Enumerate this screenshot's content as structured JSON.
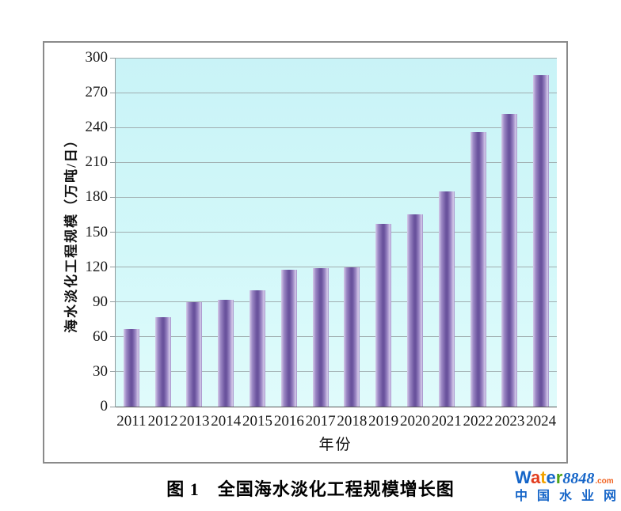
{
  "chart_data": {
    "type": "bar",
    "title": "",
    "xlabel": "年份",
    "ylabel": "海水淡化工程规模（万吨/日）",
    "categories": [
      "2011",
      "2012",
      "2013",
      "2014",
      "2015",
      "2016",
      "2017",
      "2018",
      "2019",
      "2020",
      "2021",
      "2022",
      "2023",
      "2024"
    ],
    "values": [
      67,
      77,
      90,
      92,
      100,
      118,
      119,
      120,
      157,
      165,
      185,
      236,
      252,
      285
    ],
    "ylim": [
      0,
      300
    ],
    "yticks": [
      0,
      30,
      60,
      90,
      120,
      150,
      180,
      210,
      240,
      270,
      300
    ],
    "grid": true,
    "legend": "none",
    "plot_bg_color": "#cdf6f8",
    "gridline_color": "#a0aeb0",
    "bar_color_light": "#d5cbea",
    "bar_color_mid": "#9b87c4",
    "bar_color_dark": "#6a539d"
  },
  "caption": "图 1　全国海水淡化工程规模增长图",
  "watermark": {
    "brand_letters": [
      {
        "ch": "W",
        "color": "#1565c8"
      },
      {
        "ch": "a",
        "color": "#e23c1e"
      },
      {
        "ch": "t",
        "color": "#f2a300"
      },
      {
        "ch": "e",
        "color": "#1565c8"
      },
      {
        "ch": "r",
        "color": "#4ea31a"
      }
    ],
    "brand_number": "8848",
    "brand_number_color": "#1565c8",
    "brand_tld": ".com",
    "brand_tld_color": "#f06423",
    "subtitle": "中国水业网",
    "subtitle_color": "#1565c8"
  }
}
